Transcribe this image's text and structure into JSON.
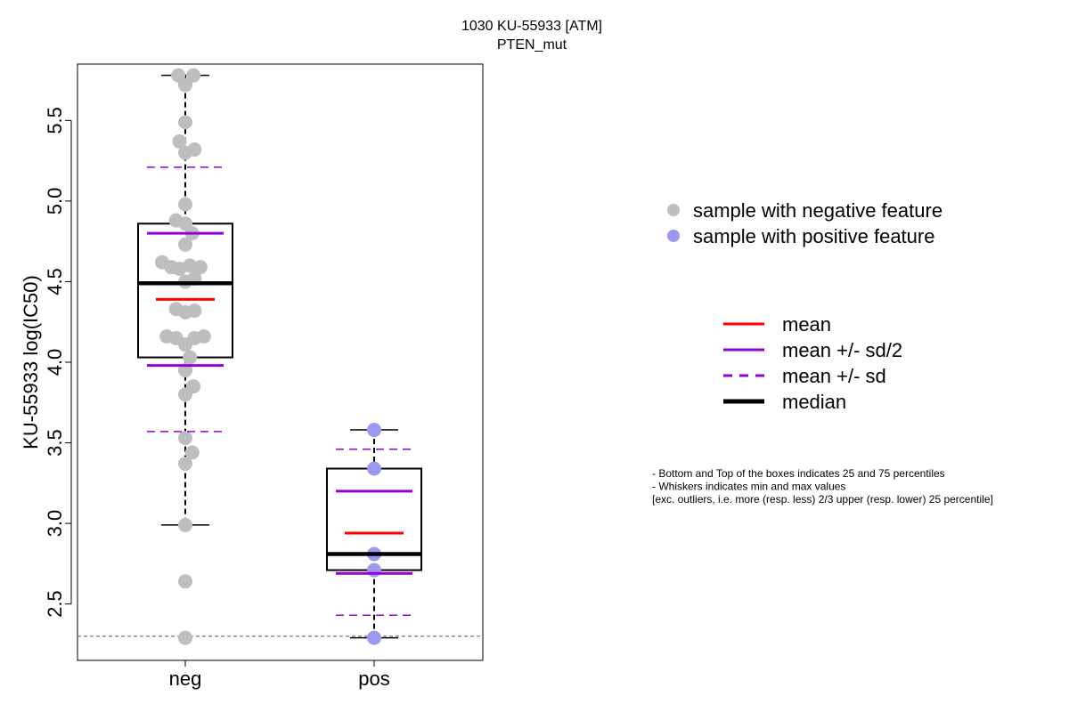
{
  "chart_data": {
    "type": "box",
    "title": "1030 KU-55933 [ATM]",
    "subtitle": "PTEN_mut",
    "ylabel": "KU-55933 log(IC50)",
    "xlabel": "",
    "ylim": [
      2.15,
      5.85
    ],
    "yticks": [
      "2.5",
      "3.0",
      "3.5",
      "4.0",
      "4.5",
      "5.0",
      "5.5"
    ],
    "reference_line": 2.3,
    "categories": [
      "neg",
      "pos"
    ],
    "groups": [
      {
        "name": "neg",
        "color": "#bebebe",
        "q1": 4.03,
        "median": 4.49,
        "q3": 4.86,
        "whisker_low": 2.99,
        "whisker_high": 5.78,
        "mean": 4.39,
        "mean_minus_half_sd": 3.98,
        "mean_plus_half_sd": 4.8,
        "mean_minus_sd": 3.57,
        "mean_plus_sd": 5.21,
        "points": [
          {
            "jitter": -0.06,
            "y": 5.78
          },
          {
            "jitter": 0.07,
            "y": 5.78
          },
          {
            "jitter": 0.0,
            "y": 5.72
          },
          {
            "jitter": 0.0,
            "y": 5.49
          },
          {
            "jitter": -0.05,
            "y": 5.37
          },
          {
            "jitter": 0.08,
            "y": 5.32
          },
          {
            "jitter": 0.0,
            "y": 5.3
          },
          {
            "jitter": 0.0,
            "y": 4.98
          },
          {
            "jitter": -0.08,
            "y": 4.88
          },
          {
            "jitter": 0.0,
            "y": 4.86
          },
          {
            "jitter": 0.06,
            "y": 4.8
          },
          {
            "jitter": 0.0,
            "y": 4.73
          },
          {
            "jitter": -0.2,
            "y": 4.62
          },
          {
            "jitter": -0.12,
            "y": 4.59
          },
          {
            "jitter": -0.05,
            "y": 4.58
          },
          {
            "jitter": 0.04,
            "y": 4.6
          },
          {
            "jitter": 0.13,
            "y": 4.59
          },
          {
            "jitter": 0.08,
            "y": 4.52
          },
          {
            "jitter": 0.0,
            "y": 4.5
          },
          {
            "jitter": -0.08,
            "y": 4.33
          },
          {
            "jitter": 0.0,
            "y": 4.31
          },
          {
            "jitter": 0.08,
            "y": 4.32
          },
          {
            "jitter": -0.16,
            "y": 4.16
          },
          {
            "jitter": -0.08,
            "y": 4.15
          },
          {
            "jitter": 0.0,
            "y": 4.11
          },
          {
            "jitter": 0.08,
            "y": 4.15
          },
          {
            "jitter": 0.16,
            "y": 4.16
          },
          {
            "jitter": 0.04,
            "y": 4.03
          },
          {
            "jitter": 0.0,
            "y": 3.95
          },
          {
            "jitter": 0.07,
            "y": 3.85
          },
          {
            "jitter": 0.0,
            "y": 3.8
          },
          {
            "jitter": 0.0,
            "y": 3.53
          },
          {
            "jitter": 0.06,
            "y": 3.44
          },
          {
            "jitter": 0.0,
            "y": 3.37
          },
          {
            "jitter": 0.0,
            "y": 2.99
          },
          {
            "jitter": 0.0,
            "y": 2.64
          },
          {
            "jitter": 0.0,
            "y": 2.29
          }
        ]
      },
      {
        "name": "pos",
        "color": "#9999f0",
        "q1": 2.71,
        "median": 2.81,
        "q3": 3.34,
        "whisker_low": 2.29,
        "whisker_high": 3.58,
        "mean": 2.94,
        "mean_minus_half_sd": 2.69,
        "mean_plus_half_sd": 3.2,
        "mean_minus_sd": 2.43,
        "mean_plus_sd": 3.46,
        "points": [
          {
            "jitter": 0.0,
            "y": 3.58
          },
          {
            "jitter": 0.0,
            "y": 3.34
          },
          {
            "jitter": 0.0,
            "y": 2.81
          },
          {
            "jitter": 0.0,
            "y": 2.71
          },
          {
            "jitter": 0.0,
            "y": 2.29
          }
        ]
      }
    ],
    "legend": {
      "points": [
        {
          "label": "sample with negative feature",
          "color": "#bebebe"
        },
        {
          "label": "sample with positive feature",
          "color": "#9999f0"
        }
      ],
      "lines": [
        {
          "label": "mean",
          "color": "#ff0000",
          "style": "solid"
        },
        {
          "label": "mean +/- sd/2",
          "color": "#9400d3",
          "style": "solid"
        },
        {
          "label": "mean +/- sd",
          "color": "#9400d3",
          "style": "dashed"
        },
        {
          "label": "median",
          "color": "#000000",
          "style": "thick"
        }
      ]
    },
    "notes": [
      "- Bottom and Top of the boxes indicates 25 and 75 percentiles",
      "- Whiskers indicates min and max values",
      "[exc. outliers, i.e. more (resp. less) 2/3 upper (resp. lower) 25 percentile]"
    ]
  }
}
